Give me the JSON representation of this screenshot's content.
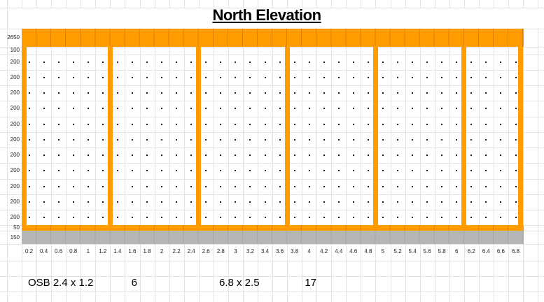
{
  "title": "North Elevation",
  "colors": {
    "orange": "#FF9C00",
    "foundation_gray": "#B5B5B5",
    "gridline": "#E3E3E3",
    "dot": "#1A1A1A",
    "text": "#000000"
  },
  "left_axis": {
    "row_labels": [
      "2650",
      "100",
      "200",
      "200",
      "200",
      "200",
      "200",
      "200",
      "200",
      "200",
      "200",
      "200",
      "200",
      "50",
      "150"
    ]
  },
  "bottom_axis": {
    "column_labels": [
      "0.2",
      "0.4",
      "0.6",
      "0.8",
      "1",
      "1.2",
      "1.4",
      "1.6",
      "1.8",
      "2",
      "2.2",
      "2.4",
      "2.6",
      "2.8",
      "3",
      "3.2",
      "3.4",
      "3.6",
      "3.8",
      "4",
      "4.2",
      "4.4",
      "4.6",
      "4.8",
      "5",
      "5.2",
      "5.4",
      "5.6",
      "5.8",
      "6",
      "6.2",
      "6.4",
      "6.6",
      "6.8"
    ]
  },
  "frame": {
    "columns": 34,
    "dot_rows": 11,
    "stud_boundaries": [
      0,
      6,
      12,
      18,
      24,
      30,
      34
    ],
    "missing_dots": [
      {
        "row": 9,
        "col": 7
      }
    ]
  },
  "annotations": {
    "osb_size": "OSB 2.4 x 1.2",
    "osb_count": "6",
    "wall_size": "6.8 x 2.5",
    "stud_count": "17"
  }
}
